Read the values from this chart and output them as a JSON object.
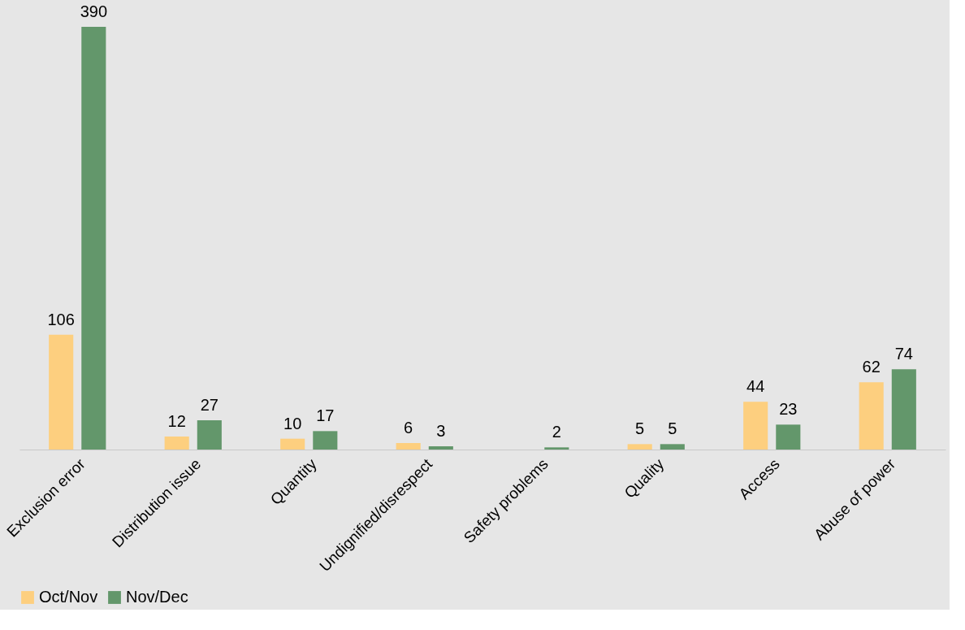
{
  "chart_data": {
    "type": "bar",
    "categories": [
      "Exclusion error",
      "Distribution issue",
      "Quantity",
      "Undignified/disrespect",
      "Safety problems",
      "Quality",
      "Access",
      "Abuse of power"
    ],
    "series": [
      {
        "name": "Oct/Nov",
        "color": "#fdcf7f",
        "values": [
          106,
          12,
          10,
          6,
          null,
          5,
          44,
          62
        ]
      },
      {
        "name": "Nov/Dec",
        "color": "#63976b",
        "values": [
          390,
          27,
          17,
          3,
          2,
          5,
          23,
          74
        ]
      }
    ],
    "data_labels": true,
    "legend": "bottom",
    "grid": false
  }
}
